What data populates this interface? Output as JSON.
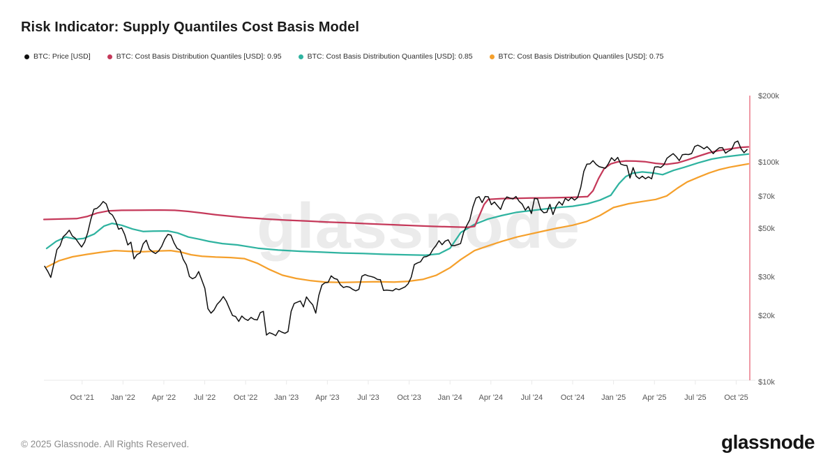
{
  "header": {
    "title": "Risk Indicator: Supply Quantiles Cost Basis Model"
  },
  "watermark": "glassnode",
  "footer": {
    "copyright": "© 2025 Glassnode. All Rights Reserved.",
    "logo_text": "glassnode"
  },
  "chart_data": {
    "type": "line",
    "title": "Risk Indicator: Supply Quantiles Cost Basis Model",
    "y_scale": "log",
    "grid": "off",
    "legend_position": "top-left",
    "y_ticks": [
      {
        "label": "$200k",
        "value": 200
      },
      {
        "label": "$100k",
        "value": 100
      },
      {
        "label": "$70k",
        "value": 70
      },
      {
        "label": "$50k",
        "value": 50
      },
      {
        "label": "$30k",
        "value": 30
      },
      {
        "label": "$20k",
        "value": 20
      },
      {
        "label": "$10k",
        "value": 10
      }
    ],
    "x_unit": "months since Jul 2021",
    "x_ticks": [
      {
        "label": "Oct '21",
        "t": 3
      },
      {
        "label": "Jan '22",
        "t": 6
      },
      {
        "label": "Apr '22",
        "t": 9
      },
      {
        "label": "Jul '22",
        "t": 12
      },
      {
        "label": "Oct '22",
        "t": 15
      },
      {
        "label": "Jan '23",
        "t": 18
      },
      {
        "label": "Apr '23",
        "t": 21
      },
      {
        "label": "Jul '23",
        "t": 24
      },
      {
        "label": "Oct '23",
        "t": 27
      },
      {
        "label": "Jan '24",
        "t": 30
      },
      {
        "label": "Apr '24",
        "t": 33
      },
      {
        "label": "Jul '24",
        "t": 36
      },
      {
        "label": "Oct '24",
        "t": 39
      },
      {
        "label": "Jan '25",
        "t": 42
      },
      {
        "label": "Apr '25",
        "t": 45
      },
      {
        "label": "Jul '25",
        "t": 48
      },
      {
        "label": "Oct '25",
        "t": 51
      }
    ],
    "marker_line": {
      "t": 52.0,
      "color": "#e4566b"
    },
    "series": [
      {
        "name": "BTC: Price [USD]",
        "color": "#0f0f0f",
        "width": 1.5,
        "unit": "USD thousands",
        "t_start": 0.25,
        "t_end": 51.8,
        "values": [
          33.5,
          31.8,
          29.8,
          34.3,
          39.9,
          41.5,
          45.6,
          47.0,
          48.9,
          46.0,
          44.9,
          42.8,
          41.0,
          43.2,
          47.7,
          54.7,
          60.9,
          61.5,
          63.3,
          66.0,
          64.4,
          58.7,
          57.3,
          54.0,
          49.4,
          50.1,
          46.7,
          41.9,
          43.1,
          36.2,
          37.9,
          38.5,
          42.4,
          44.0,
          40.1,
          39.0,
          38.3,
          39.3,
          41.3,
          44.5,
          46.8,
          46.4,
          42.8,
          40.4,
          39.7,
          36.0,
          34.0,
          30.1,
          29.4,
          29.9,
          31.7,
          29.0,
          26.6,
          21.5,
          20.5,
          21.2,
          22.5,
          23.3,
          24.4,
          23.2,
          21.5,
          20.0,
          19.8,
          18.8,
          19.9,
          19.3,
          19.0,
          19.6,
          19.2,
          19.1,
          20.6,
          20.9,
          16.3,
          16.7,
          16.5,
          16.2,
          17.1,
          16.8,
          16.6,
          16.9,
          20.9,
          22.7,
          23.0,
          23.3,
          21.9,
          24.3,
          23.2,
          22.4,
          20.5,
          24.7,
          27.5,
          28.2,
          28.3,
          30.3,
          29.5,
          29.2,
          27.6,
          26.8,
          27.1,
          26.9,
          26.3,
          25.9,
          26.3,
          30.2,
          30.7,
          30.3,
          30.1,
          29.8,
          29.2,
          29.1,
          26.0,
          26.1,
          26.0,
          25.9,
          26.5,
          26.2,
          26.6,
          27.0,
          27.9,
          29.9,
          34.1,
          34.7,
          35.1,
          36.9,
          37.1,
          37.7,
          39.9,
          41.6,
          43.8,
          42.0,
          43.6,
          44.2,
          41.7,
          41.6,
          42.0,
          42.5,
          47.8,
          51.3,
          54.5,
          62.4,
          68.5,
          69.5,
          65.3,
          69.6,
          69.4,
          63.9,
          65.7,
          63.1,
          60.8,
          66.3,
          69.3,
          68.5,
          67.8,
          69.6,
          66.2,
          64.3,
          60.3,
          62.7,
          58.2,
          68.2,
          67.9,
          60.7,
          58.7,
          59.0,
          64.1,
          57.6,
          62.8,
          65.9,
          63.6,
          68.3,
          66.6,
          68.9,
          67.0,
          68.8,
          76.5,
          90.5,
          97.7,
          97.9,
          101.3,
          97.4,
          95.1,
          94.3,
          93.5,
          98.2,
          104.5,
          101.1,
          104.8,
          97.7,
          96.6,
          96.2,
          84.4,
          94.2,
          86.0,
          83.9,
          86.1,
          83.8,
          85.5,
          83.7,
          94.7,
          95.0,
          94.3,
          97.0,
          103.9,
          106.5,
          109.0,
          105.6,
          101.3,
          107.8,
          108.3,
          108.0,
          109.2,
          117.5,
          119.1,
          117.3,
          114.7,
          117.4,
          113.5,
          109.0,
          113.0,
          115.9,
          116.1,
          109.6,
          112.1,
          114.0,
          122.5,
          124.4,
          115.0,
          110.1,
          113.8
        ]
      },
      {
        "name": "BTC: Cost Basis Distribution Quantiles [USD]: 0.95",
        "color": "#c5395a",
        "width": 2.25,
        "unit": "USD thousands",
        "points": [
          [
            0.2,
            54.7
          ],
          [
            1.6,
            55.0
          ],
          [
            2.6,
            55.2
          ],
          [
            3.4,
            56.5
          ],
          [
            4.1,
            58.5
          ],
          [
            4.9,
            59.8
          ],
          [
            5.9,
            60.2
          ],
          [
            7.2,
            60.3
          ],
          [
            8.7,
            60.4
          ],
          [
            9.8,
            60.2
          ],
          [
            10.8,
            59.5
          ],
          [
            11.8,
            58.5
          ],
          [
            12.8,
            57.5
          ],
          [
            13.9,
            56.6
          ],
          [
            14.9,
            55.8
          ],
          [
            16.4,
            55.0
          ],
          [
            18.0,
            54.3
          ],
          [
            19.5,
            53.8
          ],
          [
            21.0,
            53.2
          ],
          [
            22.6,
            52.8
          ],
          [
            24.1,
            52.3
          ],
          [
            25.7,
            51.8
          ],
          [
            27.2,
            51.3
          ],
          [
            28.7,
            50.9
          ],
          [
            30.3,
            50.6
          ],
          [
            31.3,
            50.4
          ],
          [
            31.8,
            50.9
          ],
          [
            32.1,
            56.0
          ],
          [
            32.5,
            64.0
          ],
          [
            32.8,
            67.5
          ],
          [
            33.8,
            68.1
          ],
          [
            34.9,
            68.3
          ],
          [
            35.9,
            68.5
          ],
          [
            36.9,
            68.6
          ],
          [
            37.9,
            68.8
          ],
          [
            39.0,
            69.0
          ],
          [
            40.1,
            69.5
          ],
          [
            40.5,
            74.0
          ],
          [
            40.9,
            84.0
          ],
          [
            41.3,
            93.0
          ],
          [
            41.8,
            98.0
          ],
          [
            42.3,
            100.0
          ],
          [
            42.9,
            101.0
          ],
          [
            43.6,
            100.8
          ],
          [
            44.3,
            100.2
          ],
          [
            45.1,
            98.5
          ],
          [
            45.9,
            97.5
          ],
          [
            46.7,
            99.0
          ],
          [
            47.4,
            102.0
          ],
          [
            48.2,
            106.0
          ],
          [
            49.0,
            110.0
          ],
          [
            49.7,
            112.5
          ],
          [
            50.5,
            114.5
          ],
          [
            51.3,
            116.3
          ],
          [
            51.9,
            117.0
          ]
        ]
      },
      {
        "name": "BTC: Cost Basis Distribution Quantiles [USD]: 0.85",
        "color": "#2fb3a0",
        "width": 2.25,
        "unit": "USD thousands",
        "points": [
          [
            0.4,
            40.4
          ],
          [
            1.1,
            43.5
          ],
          [
            1.8,
            45.5
          ],
          [
            2.6,
            44.5
          ],
          [
            3.1,
            44.8
          ],
          [
            3.9,
            47.0
          ],
          [
            4.6,
            51.0
          ],
          [
            5.2,
            52.5
          ],
          [
            5.9,
            51.5
          ],
          [
            6.7,
            49.5
          ],
          [
            7.5,
            48.2
          ],
          [
            8.2,
            48.4
          ],
          [
            9.3,
            48.5
          ],
          [
            10.0,
            47.5
          ],
          [
            10.8,
            45.5
          ],
          [
            11.6,
            44.5
          ],
          [
            12.3,
            43.5
          ],
          [
            13.3,
            42.5
          ],
          [
            14.4,
            41.9
          ],
          [
            15.9,
            40.5
          ],
          [
            17.4,
            39.7
          ],
          [
            19.0,
            39.2
          ],
          [
            20.5,
            38.9
          ],
          [
            22.1,
            38.5
          ],
          [
            23.6,
            38.3
          ],
          [
            25.1,
            38.0
          ],
          [
            26.7,
            37.8
          ],
          [
            28.2,
            37.6
          ],
          [
            29.2,
            38.2
          ],
          [
            30.0,
            40.5
          ],
          [
            30.8,
            47.8
          ],
          [
            31.8,
            52.0
          ],
          [
            32.8,
            55.0
          ],
          [
            33.8,
            57.0
          ],
          [
            34.9,
            59.0
          ],
          [
            35.9,
            60.0
          ],
          [
            36.9,
            61.0
          ],
          [
            37.9,
            62.0
          ],
          [
            39.0,
            62.8
          ],
          [
            40.1,
            64.5
          ],
          [
            41.0,
            67.0
          ],
          [
            41.8,
            70.5
          ],
          [
            42.4,
            79.6
          ],
          [
            42.9,
            85.8
          ],
          [
            43.4,
            88.8
          ],
          [
            44.1,
            90.0
          ],
          [
            44.9,
            89.0
          ],
          [
            45.6,
            87.5
          ],
          [
            46.4,
            91.5
          ],
          [
            47.2,
            94.5
          ],
          [
            48.2,
            99.0
          ],
          [
            49.2,
            103.0
          ],
          [
            50.2,
            105.5
          ],
          [
            51.3,
            107.5
          ],
          [
            51.9,
            108.5
          ]
        ]
      },
      {
        "name": "BTC: Cost Basis Distribution Quantiles [USD]: 0.75",
        "color": "#f5a02c",
        "width": 2.25,
        "unit": "USD thousands",
        "points": [
          [
            0.4,
            33.2
          ],
          [
            1.3,
            35.5
          ],
          [
            2.3,
            37.0
          ],
          [
            3.4,
            38.0
          ],
          [
            4.4,
            38.8
          ],
          [
            5.4,
            39.5
          ],
          [
            6.4,
            39.2
          ],
          [
            7.5,
            39.0
          ],
          [
            8.5,
            39.3
          ],
          [
            9.5,
            39.5
          ],
          [
            10.3,
            38.8
          ],
          [
            11.0,
            37.8
          ],
          [
            11.8,
            37.2
          ],
          [
            12.8,
            36.9
          ],
          [
            13.9,
            36.7
          ],
          [
            14.9,
            36.3
          ],
          [
            15.9,
            34.5
          ],
          [
            16.7,
            32.5
          ],
          [
            17.7,
            30.5
          ],
          [
            18.7,
            29.5
          ],
          [
            19.8,
            28.8
          ],
          [
            20.8,
            28.4
          ],
          [
            22.1,
            28.3
          ],
          [
            23.3,
            28.4
          ],
          [
            24.6,
            28.5
          ],
          [
            25.9,
            28.4
          ],
          [
            26.9,
            28.6
          ],
          [
            28.0,
            29.2
          ],
          [
            29.0,
            30.5
          ],
          [
            30.0,
            33.0
          ],
          [
            30.8,
            36.0
          ],
          [
            31.8,
            39.5
          ],
          [
            32.8,
            41.5
          ],
          [
            33.8,
            43.5
          ],
          [
            34.9,
            45.5
          ],
          [
            35.9,
            47.0
          ],
          [
            36.9,
            48.5
          ],
          [
            37.9,
            50.0
          ],
          [
            39.0,
            51.5
          ],
          [
            40.0,
            53.5
          ],
          [
            41.0,
            57.0
          ],
          [
            42.0,
            62.0
          ],
          [
            43.1,
            64.5
          ],
          [
            44.1,
            66.0
          ],
          [
            45.1,
            67.5
          ],
          [
            45.9,
            70.0
          ],
          [
            46.7,
            76.0
          ],
          [
            47.4,
            81.0
          ],
          [
            48.2,
            85.0
          ],
          [
            49.0,
            89.0
          ],
          [
            49.7,
            92.0
          ],
          [
            50.5,
            94.5
          ],
          [
            51.3,
            96.5
          ],
          [
            51.9,
            98.0
          ]
        ]
      }
    ]
  }
}
